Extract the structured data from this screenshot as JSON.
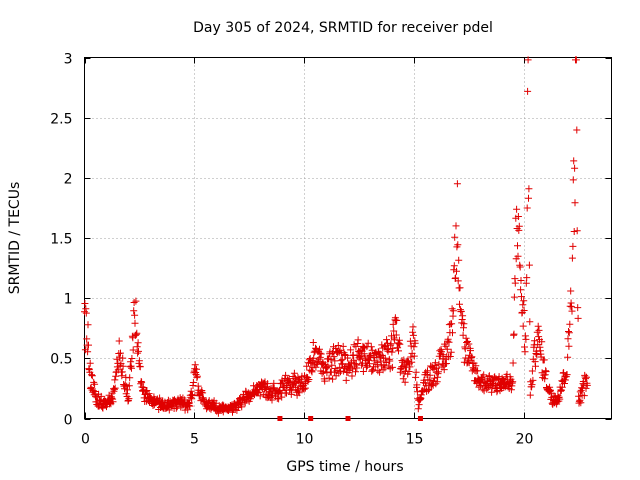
{
  "chart_data": {
    "type": "scatter",
    "title": "Day 305 of 2024, SRMTID for receiver pdel",
    "xlabel": "GPS time / hours",
    "ylabel": "SRMTID / TECUs",
    "xlim": [
      0,
      24
    ],
    "ylim": [
      0,
      3
    ],
    "x_ticks": [
      0,
      5,
      10,
      15,
      20
    ],
    "x_tick_labels": [
      "0",
      "5",
      "10",
      "15",
      "20"
    ],
    "y_ticks": [
      0,
      0.5,
      1,
      1.5,
      2,
      2.5,
      3
    ],
    "y_tick_labels": [
      "0",
      "0.5",
      "1",
      "1.5",
      "2",
      "2.5",
      "3"
    ],
    "grid": true,
    "marker": "plus",
    "color": "#e00000",
    "series": [
      {
        "name": "SRMTID",
        "profile": [
          [
            0.0,
            0.8
          ],
          [
            0.1,
            0.7
          ],
          [
            0.2,
            0.55
          ],
          [
            0.3,
            0.3
          ],
          [
            0.5,
            0.2
          ],
          [
            0.7,
            0.13
          ],
          [
            1.0,
            0.12
          ],
          [
            1.3,
            0.18
          ],
          [
            1.6,
            0.55
          ],
          [
            1.8,
            0.35
          ],
          [
            2.0,
            0.15
          ],
          [
            2.2,
            0.7
          ],
          [
            2.3,
            0.9
          ],
          [
            2.4,
            0.6
          ],
          [
            2.6,
            0.25
          ],
          [
            2.8,
            0.18
          ],
          [
            3.2,
            0.15
          ],
          [
            3.6,
            0.1
          ],
          [
            4.0,
            0.12
          ],
          [
            4.4,
            0.14
          ],
          [
            4.7,
            0.1
          ],
          [
            4.9,
            0.2
          ],
          [
            5.0,
            0.4
          ],
          [
            5.2,
            0.25
          ],
          [
            5.5,
            0.12
          ],
          [
            6.0,
            0.09
          ],
          [
            6.5,
            0.08
          ],
          [
            7.0,
            0.12
          ],
          [
            7.5,
            0.18
          ],
          [
            8.0,
            0.24
          ],
          [
            8.5,
            0.22
          ],
          [
            9.0,
            0.25
          ],
          [
            9.5,
            0.3
          ],
          [
            10.0,
            0.28
          ],
          [
            10.3,
            0.45
          ],
          [
            10.5,
            0.55
          ],
          [
            11.0,
            0.4
          ],
          [
            11.5,
            0.5
          ],
          [
            12.0,
            0.45
          ],
          [
            12.5,
            0.55
          ],
          [
            13.0,
            0.5
          ],
          [
            13.5,
            0.48
          ],
          [
            14.0,
            0.55
          ],
          [
            14.2,
            0.9
          ],
          [
            14.4,
            0.4
          ],
          [
            14.8,
            0.45
          ],
          [
            15.0,
            0.7
          ],
          [
            15.2,
            0.1
          ],
          [
            15.5,
            0.3
          ],
          [
            16.0,
            0.4
          ],
          [
            16.4,
            0.5
          ],
          [
            16.7,
            0.7
          ],
          [
            16.9,
            1.4
          ],
          [
            17.0,
            1.65
          ],
          [
            17.1,
            1.1
          ],
          [
            17.3,
            0.6
          ],
          [
            17.6,
            0.45
          ],
          [
            18.0,
            0.3
          ],
          [
            18.5,
            0.3
          ],
          [
            19.0,
            0.3
          ],
          [
            19.5,
            0.28
          ],
          [
            19.7,
            1.9
          ],
          [
            19.8,
            1.3
          ],
          [
            20.0,
            0.8
          ],
          [
            20.1,
            0.6
          ],
          [
            20.2,
            2.8
          ],
          [
            20.3,
            0.2
          ],
          [
            20.6,
            0.7
          ],
          [
            21.0,
            0.35
          ],
          [
            21.3,
            0.15
          ],
          [
            21.6,
            0.2
          ],
          [
            22.0,
            0.45
          ],
          [
            22.2,
            1.2
          ],
          [
            22.3,
            2.0
          ],
          [
            22.4,
            2.85
          ],
          [
            22.5,
            0.15
          ],
          [
            22.8,
            0.3
          ],
          [
            22.9,
            0.32
          ]
        ]
      },
      {
        "name": "baseline markers",
        "x": [
          8.9,
          10.3,
          12.0,
          15.3
        ],
        "y": [
          0,
          0,
          0,
          0
        ]
      }
    ]
  }
}
